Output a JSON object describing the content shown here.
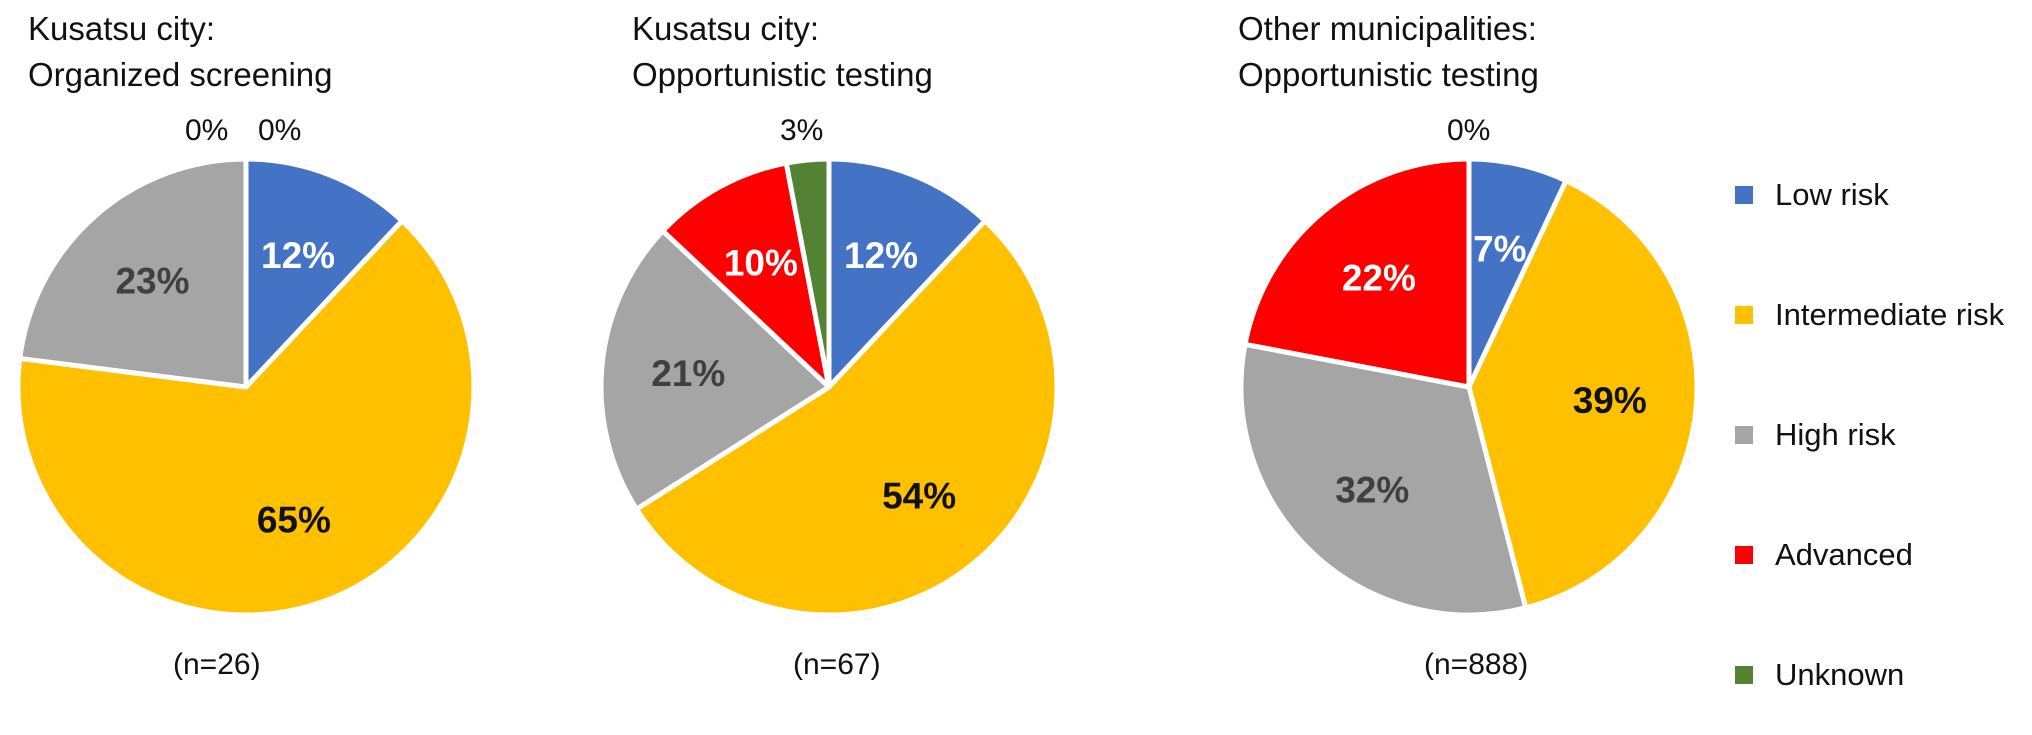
{
  "chart_data": [
    {
      "type": "pie",
      "title_lines": [
        "Kusatsu city:",
        "Organized screening"
      ],
      "n_label": "(n=26)",
      "categories": [
        "Low risk",
        "Intermediate risk",
        "High risk",
        "Advanced",
        "Unknown"
      ],
      "values": [
        12,
        65,
        23,
        0,
        0
      ],
      "value_labels": [
        "12%",
        "65%",
        "23%",
        "0%",
        "0%"
      ]
    },
    {
      "type": "pie",
      "title_lines": [
        "Kusatsu city:",
        "Opportunistic testing"
      ],
      "n_label": "(n=67)",
      "categories": [
        "Low risk",
        "Intermediate risk",
        "High risk",
        "Advanced",
        "Unknown"
      ],
      "values": [
        12,
        54,
        21,
        10,
        3
      ],
      "value_labels": [
        "12%",
        "54%",
        "21%",
        "10%",
        "3%"
      ]
    },
    {
      "type": "pie",
      "title_lines": [
        "Other municipalities:",
        "Opportunistic testing"
      ],
      "n_label": "(n=888)",
      "categories": [
        "Low risk",
        "Intermediate risk",
        "High risk",
        "Advanced",
        "Unknown"
      ],
      "values": [
        7,
        39,
        32,
        22,
        0
      ],
      "value_labels": [
        "7%",
        "39%",
        "32%",
        "22%",
        "0%"
      ]
    }
  ],
  "legend": {
    "placement": "right",
    "entries": [
      {
        "label": "Low risk",
        "color": "#4472C4"
      },
      {
        "label": "Intermediate risk",
        "color": "#FFC000"
      },
      {
        "label": "High risk",
        "color": "#A5A5A5"
      },
      {
        "label": "Advanced",
        "color": "#FF0000"
      },
      {
        "label": "Unknown",
        "color": "#548235"
      }
    ]
  },
  "label_colors": {
    "Low risk": "#ffffff",
    "Intermediate risk": "#111111",
    "High risk": "#404040",
    "Advanced": "#ffffff",
    "Unknown": "#ffffff"
  }
}
